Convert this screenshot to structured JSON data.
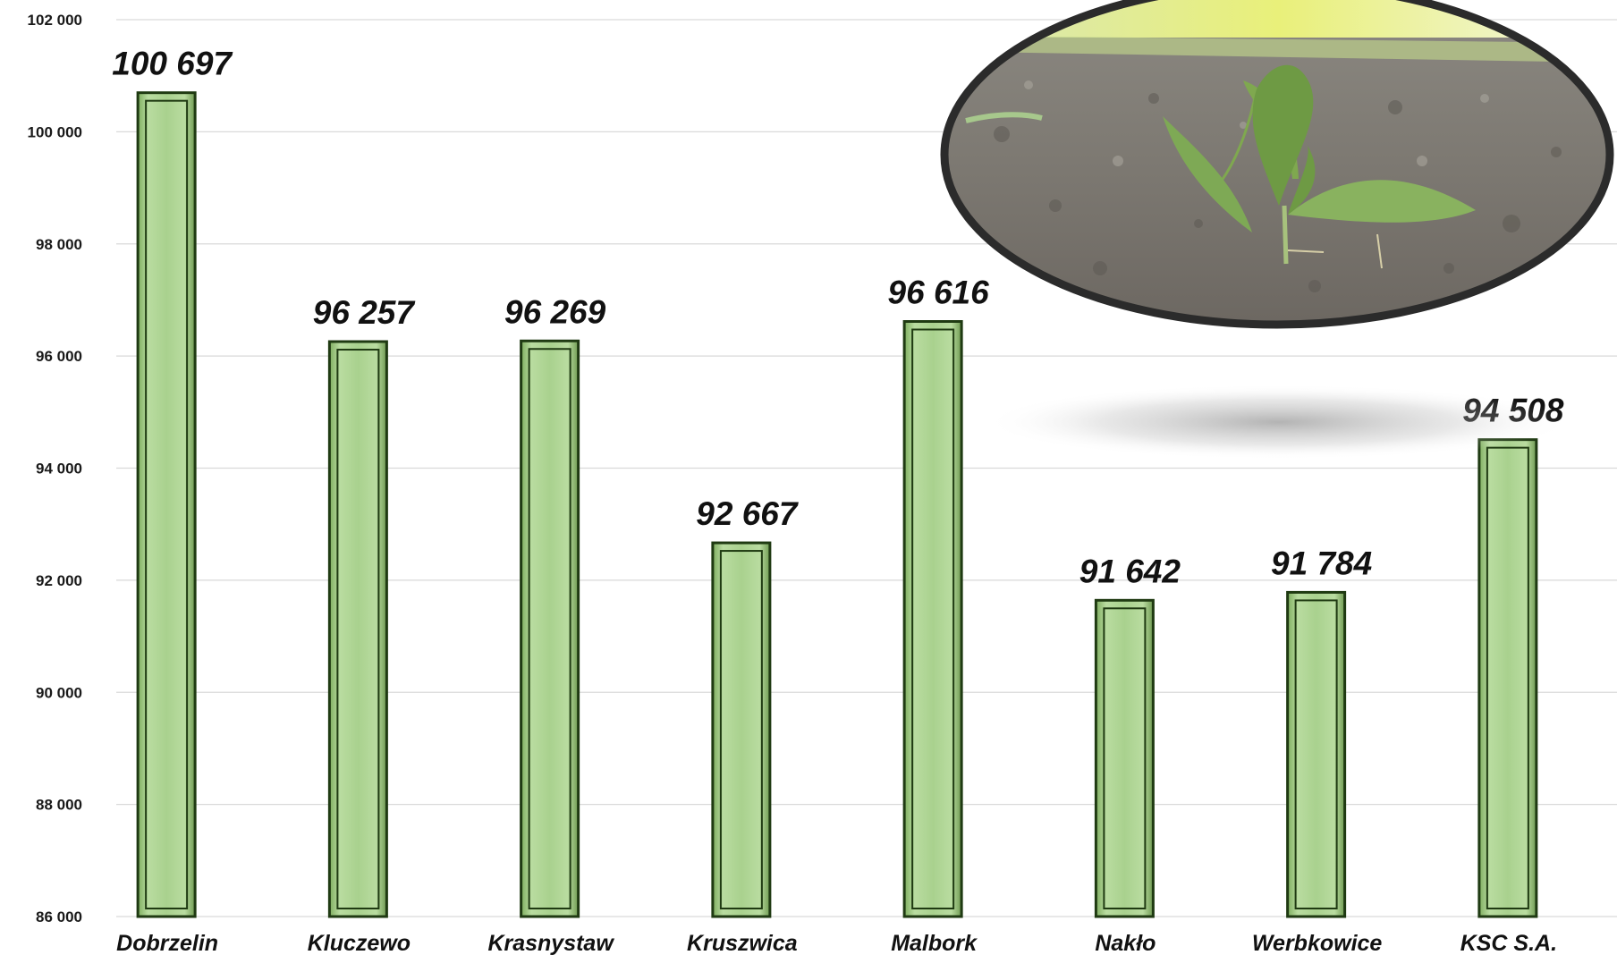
{
  "chart_data": {
    "type": "bar",
    "categories": [
      "Dobrzelin",
      "Kluczewo",
      "Krasnystaw",
      "Kruszwica",
      "Malbork",
      "Nakło",
      "Werbkowice",
      "KSC S.A."
    ],
    "values": [
      100697,
      96257,
      96269,
      92667,
      96616,
      91642,
      91784,
      94508
    ],
    "data_labels": [
      "100 697",
      "96 257",
      "96 269",
      "92 667",
      "96 616",
      "91 642",
      "91 784",
      "94 508"
    ],
    "ylim": [
      86000,
      102000
    ],
    "yticks": [
      86000,
      88000,
      90000,
      92000,
      94000,
      96000,
      98000,
      100000,
      102000
    ],
    "ytick_labels": [
      "86 000",
      "88 000",
      "90 000",
      "92 000",
      "94 000",
      "96 000",
      "98 000",
      "100 000",
      "102 000"
    ],
    "grid": true,
    "legend": "none",
    "colors": {
      "bar_fill": "#a9d18e",
      "bar_edge": "#1f3a12",
      "gridline": "#d9d9d9"
    }
  },
  "photo": {
    "subject": "young sugar beet seedling in soil",
    "frame_color": "#2b2b2b"
  }
}
